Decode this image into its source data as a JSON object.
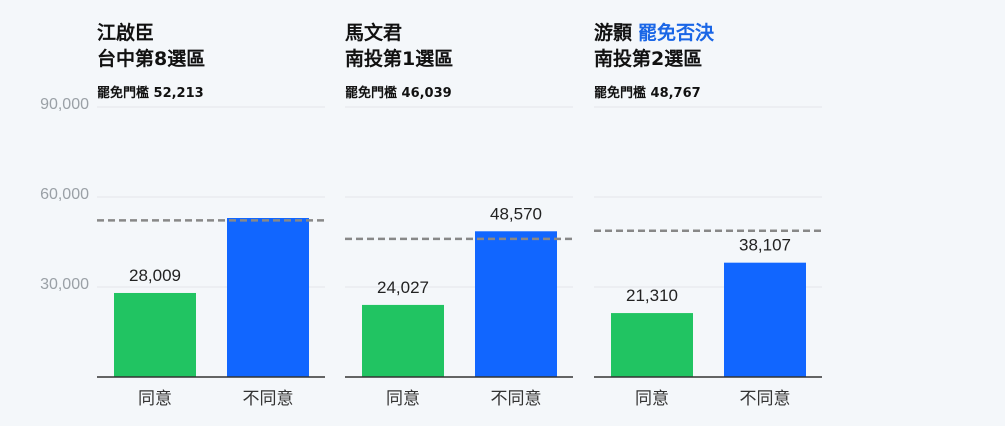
{
  "colors": {
    "agree": "#21c462",
    "disagree": "#1166ff",
    "threshold_line": "#888888",
    "grid": "#e3e6ea",
    "axis": "#333333",
    "tag": "#1a66e6"
  },
  "y_axis": {
    "ticks": [
      "90,000",
      "60,000",
      "30,000"
    ]
  },
  "chart_data": [
    {
      "type": "bar",
      "title": "江啟臣",
      "subtitle": "台中第8選區",
      "threshold_label": "罷免門檻 52,213",
      "threshold": 52213,
      "categories": [
        "同意",
        "不同意"
      ],
      "values": [
        28009,
        53000
      ],
      "value_labels": [
        "28,009",
        ""
      ],
      "ylim": [
        0,
        90000
      ],
      "yticks": [
        30000,
        60000,
        90000
      ]
    },
    {
      "type": "bar",
      "title": "馬文君",
      "subtitle": "南投第1選區",
      "threshold_label": "罷免門檻 46,039",
      "threshold": 46039,
      "categories": [
        "同意",
        "不同意"
      ],
      "values": [
        24027,
        48570
      ],
      "value_labels": [
        "24,027",
        "48,570"
      ],
      "ylim": [
        0,
        90000
      ],
      "yticks": [
        30000,
        60000,
        90000
      ]
    },
    {
      "type": "bar",
      "title": "游顥",
      "title_tag": "罷免否決",
      "subtitle": "南投第2選區",
      "threshold_label": "罷免門檻 48,767",
      "threshold": 48767,
      "categories": [
        "同意",
        "不同意"
      ],
      "values": [
        21310,
        38107
      ],
      "value_labels": [
        "21,310",
        "38,107"
      ],
      "ylim": [
        0,
        90000
      ],
      "yticks": [
        30000,
        60000,
        90000
      ]
    }
  ]
}
